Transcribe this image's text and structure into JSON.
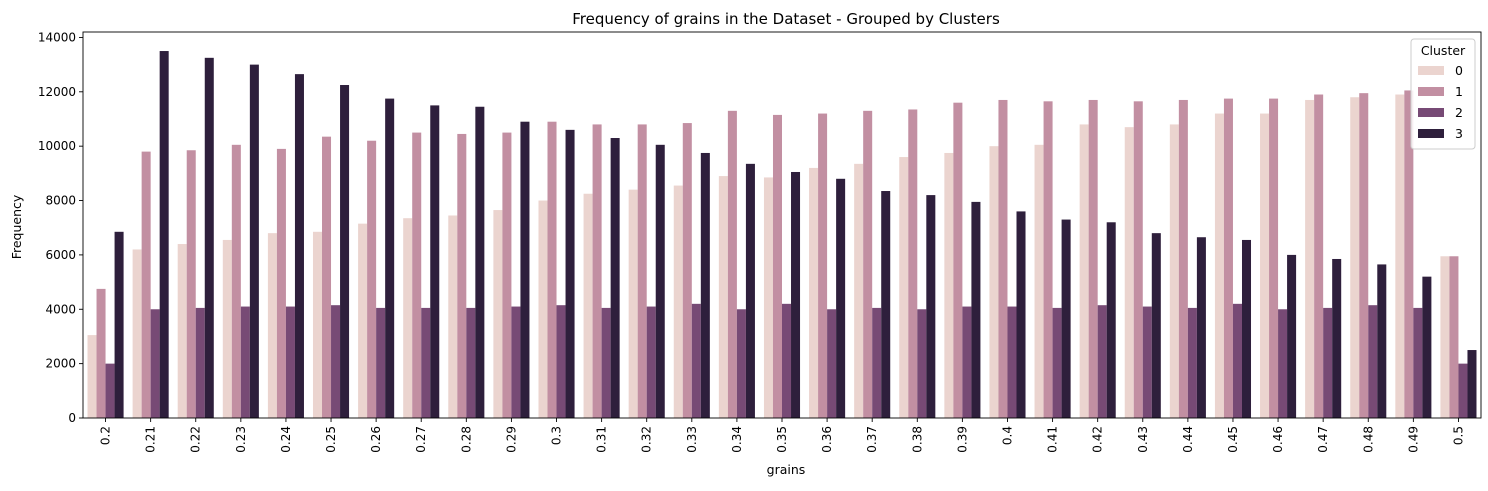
{
  "chart_data": {
    "type": "bar",
    "title": "Frequency of grains in the Dataset - Grouped by Clusters",
    "xlabel": "grains",
    "ylabel": "Frequency",
    "ylim": [
      0,
      14200
    ],
    "yticks": [
      0,
      2000,
      4000,
      6000,
      8000,
      10000,
      12000,
      14000
    ],
    "grid": false,
    "legend": {
      "title": "Cluster",
      "placement": "top-right"
    },
    "categories": [
      "0.2",
      "0.21",
      "0.22",
      "0.23",
      "0.24",
      "0.25",
      "0.26",
      "0.27",
      "0.28",
      "0.29",
      "0.3",
      "0.31",
      "0.32",
      "0.33",
      "0.34",
      "0.35",
      "0.36",
      "0.37",
      "0.38",
      "0.39",
      "0.4",
      "0.41",
      "0.42",
      "0.43",
      "0.44",
      "0.45",
      "0.46",
      "0.47",
      "0.48",
      "0.49",
      "0.5"
    ],
    "series": [
      {
        "name": "0",
        "color": "#ebd4cf",
        "values": [
          3050,
          6200,
          6400,
          6550,
          6800,
          6850,
          7150,
          7350,
          7450,
          7650,
          8000,
          8250,
          8400,
          8550,
          8900,
          8850,
          9200,
          9350,
          9600,
          9750,
          10000,
          10050,
          10800,
          10700,
          10800,
          11200,
          11200,
          11700,
          11800,
          11900,
          5950
        ]
      },
      {
        "name": "1",
        "color": "#c28fa2",
        "values": [
          4750,
          9800,
          9850,
          10050,
          9900,
          10350,
          10200,
          10500,
          10450,
          10500,
          10900,
          10800,
          10800,
          10850,
          11300,
          11150,
          11200,
          11300,
          11350,
          11600,
          11700,
          11650,
          11700,
          11650,
          11700,
          11750,
          11750,
          11900,
          11950,
          12050,
          5950
        ]
      },
      {
        "name": "2",
        "color": "#774a75",
        "values": [
          2000,
          4000,
          4050,
          4100,
          4100,
          4150,
          4050,
          4050,
          4050,
          4100,
          4150,
          4050,
          4100,
          4200,
          4000,
          4200,
          4000,
          4050,
          4000,
          4100,
          4100,
          4050,
          4150,
          4100,
          4050,
          4200,
          4000,
          4050,
          4150,
          4050,
          2000
        ]
      },
      {
        "name": "3",
        "color": "#2e1f3c",
        "values": [
          6850,
          13500,
          13250,
          13000,
          12650,
          12250,
          11750,
          11500,
          11450,
          10900,
          10600,
          10300,
          10050,
          9750,
          9350,
          9050,
          8800,
          8350,
          8200,
          7950,
          7600,
          7300,
          7200,
          6800,
          6650,
          6550,
          6000,
          5850,
          5650,
          5200,
          2500
        ]
      }
    ]
  }
}
